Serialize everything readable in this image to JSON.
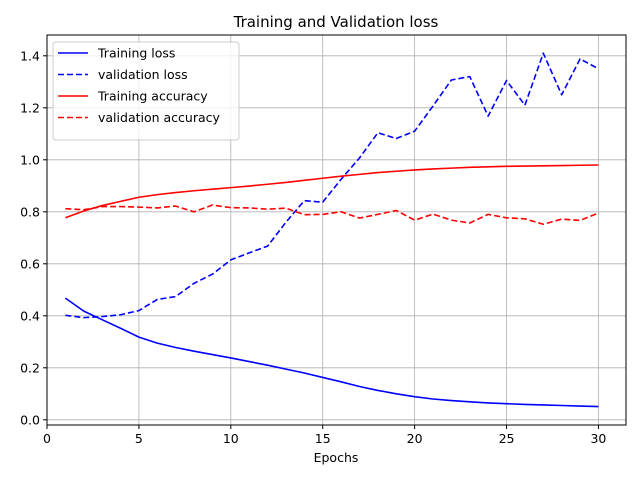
{
  "chart_data": {
    "type": "line",
    "title": "Training and Validation loss",
    "xlabel": "Epochs",
    "ylabel": "",
    "xlim": [
      0,
      31.5
    ],
    "ylim": [
      -0.02,
      1.48
    ],
    "xticks": [
      0,
      5,
      10,
      15,
      20,
      25,
      30
    ],
    "yticks": [
      0.0,
      0.2,
      0.4,
      0.6,
      0.8,
      1.0,
      1.2,
      1.4
    ],
    "grid": true,
    "legend_position": "top-left",
    "x": [
      1,
      2,
      3,
      4,
      5,
      6,
      7,
      8,
      9,
      10,
      11,
      12,
      13,
      14,
      15,
      16,
      17,
      18,
      19,
      20,
      21,
      22,
      23,
      24,
      25,
      26,
      27,
      28,
      29,
      30
    ],
    "series": [
      {
        "name": "Training loss",
        "color": "#0000ff",
        "dash": "solid",
        "values": [
          0.468,
          0.418,
          0.385,
          0.352,
          0.318,
          0.295,
          0.278,
          0.264,
          0.251,
          0.238,
          0.224,
          0.21,
          0.195,
          0.18,
          0.163,
          0.146,
          0.128,
          0.113,
          0.1,
          0.089,
          0.08,
          0.074,
          0.069,
          0.065,
          0.062,
          0.059,
          0.057,
          0.055,
          0.053,
          0.051
        ]
      },
      {
        "name": "validation loss",
        "color": "#0000ff",
        "dash": "dashed",
        "values": [
          0.402,
          0.393,
          0.397,
          0.404,
          0.42,
          0.463,
          0.474,
          0.525,
          0.56,
          0.615,
          0.642,
          0.668,
          0.76,
          0.843,
          0.837,
          0.925,
          1.007,
          1.104,
          1.082,
          1.11,
          1.207,
          1.307,
          1.32,
          1.168,
          1.305,
          1.21,
          1.41,
          1.25,
          1.388,
          1.35
        ]
      },
      {
        "name": "Training accuracy",
        "color": "#ff0000",
        "dash": "solid",
        "values": [
          0.777,
          0.803,
          0.824,
          0.84,
          0.856,
          0.866,
          0.874,
          0.881,
          0.887,
          0.893,
          0.899,
          0.906,
          0.913,
          0.921,
          0.929,
          0.937,
          0.944,
          0.951,
          0.956,
          0.961,
          0.965,
          0.968,
          0.971,
          0.973,
          0.975,
          0.976,
          0.977,
          0.978,
          0.979,
          0.98
        ]
      },
      {
        "name": "validation accuracy",
        "color": "#ff0000",
        "dash": "dashed",
        "values": [
          0.812,
          0.808,
          0.82,
          0.82,
          0.818,
          0.815,
          0.822,
          0.8,
          0.826,
          0.816,
          0.815,
          0.81,
          0.814,
          0.789,
          0.79,
          0.8,
          0.776,
          0.79,
          0.805,
          0.768,
          0.791,
          0.768,
          0.757,
          0.79,
          0.777,
          0.773,
          0.752,
          0.772,
          0.767,
          0.795
        ]
      }
    ]
  }
}
